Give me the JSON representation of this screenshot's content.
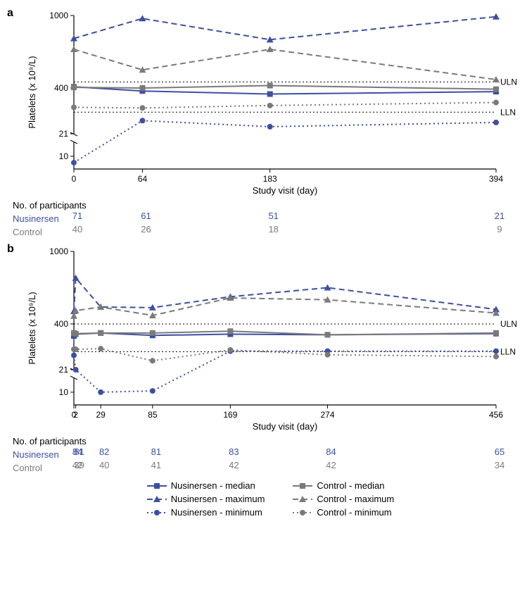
{
  "colors": {
    "nusinersen": "#3d4fa3",
    "control": "#7a7a7a",
    "axis": "#000000",
    "ref": "#000000",
    "bg": "#ffffff"
  },
  "legend": {
    "items": [
      {
        "label": "Nusinersen - median",
        "color": "#3d4fa3",
        "dash": "solid",
        "marker": "square"
      },
      {
        "label": "Nusinersen - maximum",
        "color": "#3d4fa3",
        "dash": "dash",
        "marker": "triangle"
      },
      {
        "label": "Nusinersen - minimum",
        "color": "#3d4fa3",
        "dash": "dot",
        "marker": "circle"
      },
      {
        "label": "Control - median",
        "color": "#7a7a7a",
        "dash": "solid",
        "marker": "square"
      },
      {
        "label": "Control - maximum",
        "color": "#7a7a7a",
        "dash": "dash",
        "marker": "triangle"
      },
      {
        "label": "Control - minimum",
        "color": "#7a7a7a",
        "dash": "dot",
        "marker": "circle"
      }
    ]
  },
  "panelA": {
    "letter": "a",
    "ylabel": "Platelets (x 10⁹/L)",
    "xlabel": "Study visit (day)",
    "x_ticks": [
      0,
      64,
      183,
      394
    ],
    "y_upper_ticks": [
      400,
      1000
    ],
    "y_lower_ticks": [
      10,
      21
    ],
    "break_at": 21,
    "uln": 450,
    "uln_label": "ULN",
    "lln": 200,
    "lln_label": "LLN",
    "series": {
      "nus_median": {
        "x": [
          0,
          64,
          183,
          394
        ],
        "y": [
          410,
          375,
          350,
          370
        ],
        "color": "#3d4fa3",
        "dash": "solid",
        "marker": "square"
      },
      "nus_max": {
        "x": [
          0,
          64,
          183,
          394
        ],
        "y": [
          810,
          975,
          800,
          990
        ],
        "color": "#3d4fa3",
        "dash": "dash",
        "marker": "triangle"
      },
      "nus_min": {
        "x": [
          0,
          64,
          183,
          394
        ],
        "y": [
          5,
          130,
          80,
          115
        ],
        "color": "#3d4fa3",
        "dash": "dot",
        "marker": "circle"
      },
      "ctrl_median": {
        "x": [
          0,
          64,
          183,
          394
        ],
        "y": [
          405,
          400,
          420,
          390
        ],
        "color": "#7a7a7a",
        "dash": "solid",
        "marker": "square"
      },
      "ctrl_max": {
        "x": [
          0,
          64,
          183,
          394
        ],
        "y": [
          720,
          550,
          720,
          470
        ],
        "color": "#7a7a7a",
        "dash": "dash",
        "marker": "triangle"
      },
      "ctrl_min": {
        "x": [
          0,
          64,
          183,
          394
        ],
        "y": [
          240,
          235,
          255,
          280
        ],
        "color": "#7a7a7a",
        "dash": "dot",
        "marker": "circle"
      }
    },
    "participants": {
      "header": "No. of participants",
      "rows": [
        {
          "label": "Nusinersen",
          "color": "#3d4fa3",
          "vals": [
            71,
            61,
            51,
            21
          ]
        },
        {
          "label": "Control",
          "color": "#7a7a7a",
          "vals": [
            40,
            26,
            18,
            9
          ]
        }
      ]
    }
  },
  "panelB": {
    "letter": "b",
    "ylabel": "Platelets (x 10⁹/L)",
    "xlabel": "Study visit (day)",
    "x_ticks": [
      0,
      2,
      29,
      85,
      169,
      274,
      456
    ],
    "y_upper_ticks": [
      400,
      1000
    ],
    "y_lower_ticks": [
      10,
      21
    ],
    "break_at": 21,
    "uln": 400,
    "uln_label": "ULN",
    "lln": 170,
    "lln_label": "LLN",
    "series": {
      "nus_median": {
        "x": [
          0,
          2,
          29,
          85,
          169,
          274,
          456
        ],
        "y": [
          300,
          315,
          325,
          305,
          315,
          310,
          320
        ],
        "color": "#3d4fa3",
        "dash": "solid",
        "marker": "square"
      },
      "nus_max": {
        "x": [
          0,
          2,
          29,
          85,
          169,
          274,
          456
        ],
        "y": [
          505,
          780,
          540,
          535,
          625,
          700,
          520
        ],
        "color": "#3d4fa3",
        "dash": "dash",
        "marker": "triangle"
      },
      "nus_min": {
        "x": [
          0,
          2,
          29,
          85,
          169,
          274,
          456
        ],
        "y": [
          140,
          21,
          10,
          11,
          175,
          175,
          175
        ],
        "color": "#3d4fa3",
        "dash": "dot",
        "marker": "circle"
      },
      "ctrl_median": {
        "x": [
          0,
          2,
          29,
          85,
          169,
          274,
          456
        ],
        "y": [
          325,
          320,
          325,
          325,
          340,
          310,
          325
        ],
        "color": "#7a7a7a",
        "dash": "solid",
        "marker": "square"
      },
      "ctrl_max": {
        "x": [
          0,
          2,
          29,
          85,
          169,
          274,
          456
        ],
        "y": [
          465,
          510,
          540,
          470,
          615,
          600,
          490
        ],
        "color": "#7a7a7a",
        "dash": "dash",
        "marker": "triangle"
      },
      "ctrl_min": {
        "x": [
          0,
          2,
          29,
          85,
          169,
          274,
          456
        ],
        "y": [
          190,
          190,
          195,
          95,
          185,
          145,
          130
        ],
        "color": "#7a7a7a",
        "dash": "dot",
        "marker": "circle"
      }
    },
    "participants": {
      "header": "No. of participants",
      "rows": [
        {
          "label": "Nusinersen",
          "color": "#3d4fa3",
          "vals": [
            84,
            81,
            82,
            81,
            83,
            84,
            65
          ]
        },
        {
          "label": "Control",
          "color": "#7a7a7a",
          "vals": [
            42,
            39,
            40,
            41,
            42,
            42,
            34
          ]
        }
      ]
    }
  }
}
